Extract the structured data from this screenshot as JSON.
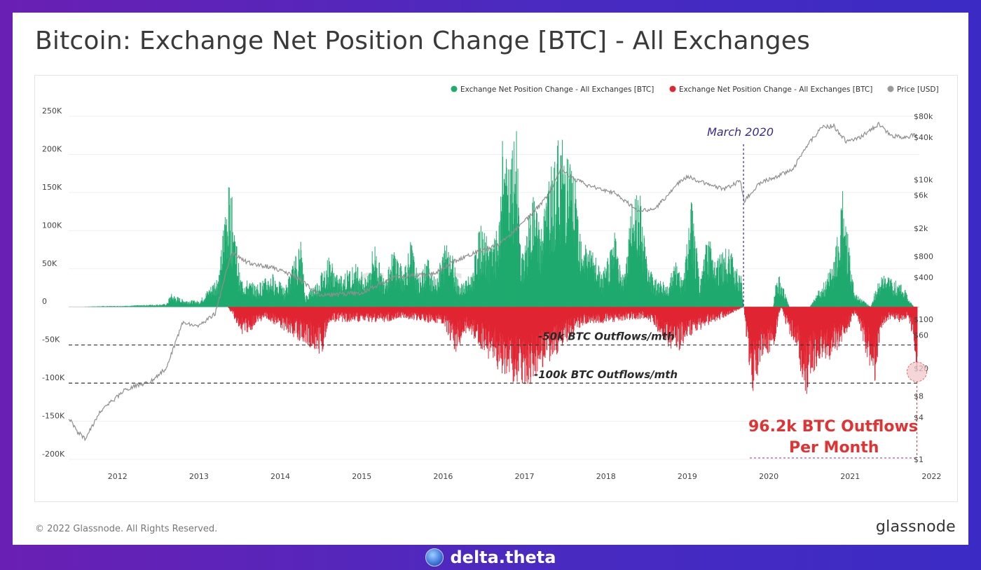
{
  "page": {
    "title": "Bitcoin: Exchange Net Position Change [BTC] - All Exchanges",
    "copyright": "© 2022 Glassnode. All Rights Reserved.",
    "brand": "glassnode",
    "footer_brand": "delta.theta",
    "watermark": "glassnode"
  },
  "colors": {
    "inflow": "#1faa6e",
    "outflow": "#e12532",
    "price": "#8f8f8f",
    "annotation_purple": "#3a2a90"
  },
  "chart_data": {
    "type": "bar",
    "title": "Bitcoin: Exchange Net Position Change [BTC] - All Exchanges",
    "legend_position": "top-right",
    "legend": [
      {
        "label": "Exchange Net Position Change - All Exchanges [BTC]",
        "color": "#1faa6e"
      },
      {
        "label": "Exchange Net Position Change - All Exchanges [BTC]",
        "color": "#e12532"
      },
      {
        "label": "Price [USD]",
        "color": "#9a9a9a"
      }
    ],
    "x_ticks": [
      "2012",
      "2013",
      "2014",
      "2015",
      "2016",
      "2017",
      "2018",
      "2019",
      "2020",
      "2021",
      "2022"
    ],
    "xlim": [
      2011.9,
      2022.35
    ],
    "y_left": {
      "ticks": [
        250000,
        200000,
        150000,
        100000,
        50000,
        0,
        -50000,
        -100000,
        -150000,
        -200000
      ],
      "tick_labels": [
        "250K",
        "200K",
        "150K",
        "100K",
        "50K",
        "0",
        "-50K",
        "-100K",
        "-150K",
        "-200K"
      ],
      "ylim": [
        -200000,
        250000
      ]
    },
    "y_right": {
      "scale": "log",
      "ticks": [
        80000,
        40000,
        10000,
        6000,
        2000,
        800,
        400,
        100,
        60,
        20,
        8,
        4,
        1
      ],
      "tick_labels": [
        "$80k",
        "$40k",
        "$10k",
        "$6k",
        "$2k",
        "$800",
        "$400",
        "$100",
        "$60",
        "$20",
        "$8",
        "$4",
        "$1"
      ],
      "ylim": [
        1,
        80000
      ]
    },
    "series": [
      {
        "name": "Exchange Net Position Change - All Exchanges [BTC]",
        "sign": "positive",
        "points": [
          [
            2012.0,
            0
          ],
          [
            2012.3,
            1000
          ],
          [
            2012.6,
            1500
          ],
          [
            2012.9,
            3000
          ],
          [
            2013.1,
            4000
          ],
          [
            2013.15,
            18000
          ],
          [
            2013.3,
            10000
          ],
          [
            2013.5,
            8000
          ],
          [
            2013.65,
            30000
          ],
          [
            2013.75,
            50000
          ],
          [
            2013.83,
            150000
          ],
          [
            2013.88,
            165000
          ],
          [
            2013.94,
            110000
          ],
          [
            2014.0,
            40000
          ],
          [
            2014.2,
            30000
          ],
          [
            2014.4,
            45000
          ],
          [
            2014.55,
            25000
          ],
          [
            2014.75,
            90000
          ],
          [
            2014.8,
            15000
          ],
          [
            2014.95,
            35000
          ],
          [
            2015.1,
            70000
          ],
          [
            2015.2,
            40000
          ],
          [
            2015.45,
            60000
          ],
          [
            2015.55,
            35000
          ],
          [
            2015.65,
            90000
          ],
          [
            2015.75,
            40000
          ],
          [
            2015.9,
            80000
          ],
          [
            2016.0,
            50000
          ],
          [
            2016.1,
            90000
          ],
          [
            2016.2,
            35000
          ],
          [
            2016.3,
            70000
          ],
          [
            2016.4,
            35000
          ],
          [
            2016.55,
            100000
          ],
          [
            2016.7,
            30000
          ],
          [
            2016.85,
            45000
          ],
          [
            2016.95,
            110000
          ],
          [
            2017.05,
            90000
          ],
          [
            2017.1,
            80000
          ],
          [
            2017.2,
            120000
          ],
          [
            2017.22,
            250000
          ],
          [
            2017.3,
            180000
          ],
          [
            2017.4,
            240000
          ],
          [
            2017.45,
            60000
          ],
          [
            2017.6,
            150000
          ],
          [
            2017.7,
            110000
          ],
          [
            2017.85,
            200000
          ],
          [
            2017.93,
            230000
          ],
          [
            2018.0,
            220000
          ],
          [
            2018.1,
            185000
          ],
          [
            2018.2,
            100000
          ],
          [
            2018.4,
            60000
          ],
          [
            2018.45,
            40000
          ],
          [
            2018.6,
            105000
          ],
          [
            2018.7,
            40000
          ],
          [
            2018.8,
            125000
          ],
          [
            2018.9,
            190000
          ],
          [
            2019.0,
            60000
          ],
          [
            2019.1,
            40000
          ],
          [
            2019.25,
            30000
          ],
          [
            2019.35,
            60000
          ],
          [
            2019.45,
            40000
          ],
          [
            2019.55,
            150000
          ],
          [
            2019.65,
            30000
          ],
          [
            2019.75,
            100000
          ],
          [
            2019.85,
            70000
          ],
          [
            2020.0,
            80000
          ],
          [
            2020.15,
            50000
          ],
          [
            2020.19,
            0
          ],
          [
            2020.55,
            0
          ],
          [
            2020.6,
            50000
          ],
          [
            2020.75,
            0
          ],
          [
            2021.0,
            0
          ],
          [
            2021.3,
            60000
          ],
          [
            2021.4,
            155000
          ],
          [
            2021.45,
            115000
          ],
          [
            2021.55,
            20000
          ],
          [
            2021.75,
            0
          ],
          [
            2021.85,
            40000
          ],
          [
            2021.95,
            42000
          ],
          [
            2022.05,
            35000
          ],
          [
            2022.15,
            30000
          ],
          [
            2022.2,
            15000
          ],
          [
            2022.28,
            0
          ]
        ]
      },
      {
        "name": "Exchange Net Position Change - All Exchanges [BTC]",
        "sign": "negative",
        "points": [
          [
            2013.85,
            0
          ],
          [
            2014.05,
            -40000
          ],
          [
            2014.3,
            -15000
          ],
          [
            2014.95,
            -60000
          ],
          [
            2015.0,
            -65000
          ],
          [
            2015.1,
            -20000
          ],
          [
            2015.8,
            -20000
          ],
          [
            2016.0,
            -15000
          ],
          [
            2016.5,
            -25000
          ],
          [
            2016.65,
            -60000
          ],
          [
            2016.8,
            -30000
          ],
          [
            2016.95,
            -55000
          ],
          [
            2017.3,
            -100000
          ],
          [
            2017.55,
            -105000
          ],
          [
            2018.2,
            -25000
          ],
          [
            2019.0,
            -15000
          ],
          [
            2019.35,
            -65000
          ],
          [
            2019.5,
            -40000
          ],
          [
            2020.19,
            0
          ],
          [
            2020.22,
            -40000
          ],
          [
            2020.3,
            -120000
          ],
          [
            2020.4,
            -70000
          ],
          [
            2020.55,
            -60000
          ],
          [
            2020.65,
            0
          ],
          [
            2020.7,
            -25000
          ],
          [
            2020.85,
            -60000
          ],
          [
            2020.95,
            -135000
          ],
          [
            2021.0,
            -90000
          ],
          [
            2021.1,
            -80000
          ],
          [
            2021.25,
            -70000
          ],
          [
            2021.4,
            -50000
          ],
          [
            2021.55,
            -10000
          ],
          [
            2021.6,
            -20000
          ],
          [
            2021.7,
            -70000
          ],
          [
            2021.8,
            -100000
          ],
          [
            2021.9,
            -25000
          ],
          [
            2022.0,
            -15000
          ],
          [
            2022.1,
            -20000
          ],
          [
            2022.2,
            -15000
          ],
          [
            2022.28,
            -45000
          ],
          [
            2022.32,
            -96200
          ]
        ]
      },
      {
        "name": "Price [USD]",
        "axis": "right",
        "points": [
          [
            2011.9,
            4
          ],
          [
            2012.0,
            2.5
          ],
          [
            2012.1,
            2
          ],
          [
            2012.3,
            5
          ],
          [
            2012.6,
            10
          ],
          [
            2012.9,
            13
          ],
          [
            2013.1,
            20
          ],
          [
            2013.3,
            90
          ],
          [
            2013.5,
            80
          ],
          [
            2013.7,
            120
          ],
          [
            2013.9,
            900
          ],
          [
            2014.1,
            650
          ],
          [
            2014.4,
            550
          ],
          [
            2014.7,
            400
          ],
          [
            2015.0,
            220
          ],
          [
            2015.5,
            240
          ],
          [
            2015.9,
            400
          ],
          [
            2016.4,
            450
          ],
          [
            2016.6,
            650
          ],
          [
            2016.9,
            900
          ],
          [
            2017.2,
            1200
          ],
          [
            2017.5,
            2500
          ],
          [
            2017.8,
            6000
          ],
          [
            2017.95,
            15000
          ],
          [
            2018.05,
            11000
          ],
          [
            2018.3,
            8000
          ],
          [
            2018.6,
            6500
          ],
          [
            2018.9,
            3500
          ],
          [
            2019.1,
            3800
          ],
          [
            2019.4,
            9000
          ],
          [
            2019.5,
            11000
          ],
          [
            2019.7,
            9000
          ],
          [
            2019.95,
            7200
          ],
          [
            2020.15,
            9500
          ],
          [
            2020.2,
            5000
          ],
          [
            2020.4,
            9200
          ],
          [
            2020.6,
            11000
          ],
          [
            2020.8,
            14000
          ],
          [
            2020.95,
            29000
          ],
          [
            2021.15,
            55000
          ],
          [
            2021.3,
            58000
          ],
          [
            2021.45,
            35000
          ],
          [
            2021.6,
            38000
          ],
          [
            2021.85,
            62000
          ],
          [
            2022.0,
            42000
          ],
          [
            2022.15,
            40000
          ],
          [
            2022.25,
            42000
          ],
          [
            2022.32,
            43000
          ]
        ]
      }
    ],
    "reference_lines": [
      {
        "value": -50000,
        "label": "-50k BTC Outflows/mth"
      },
      {
        "value": -100000,
        "label": "-100k BTC Outflows/mth"
      }
    ],
    "annotations": [
      {
        "x": 2020.19,
        "label": "March 2020"
      },
      {
        "label_lines": [
          "96.2k BTC Outflows",
          "Per Month"
        ],
        "value": -96200
      }
    ]
  }
}
